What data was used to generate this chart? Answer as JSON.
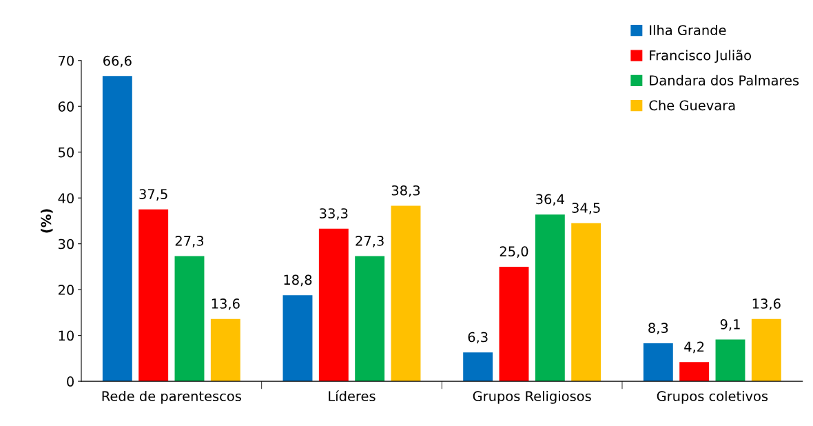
{
  "chart_data": {
    "type": "bar",
    "ylabel": "(%)",
    "categories": [
      "Rede de parentescos",
      "Líderes",
      "Grupos Religiosos",
      "Grupos coletivos"
    ],
    "series": [
      {
        "name": "Ilha Grande",
        "color": "#0070c0",
        "values": [
          66.6,
          18.8,
          6.3,
          8.3
        ],
        "value_labels": [
          "66,6",
          "18,8",
          "6,3",
          "8,3"
        ]
      },
      {
        "name": "Francisco Julião",
        "color": "#ff0000",
        "values": [
          37.5,
          33.3,
          25.0,
          4.2
        ],
        "value_labels": [
          "37,5",
          "33,3",
          "25,0",
          "4,2"
        ]
      },
      {
        "name": "Dandara dos Palmares",
        "color": "#00b050",
        "values": [
          27.3,
          27.3,
          36.4,
          9.1
        ],
        "value_labels": [
          "27,3",
          "27,3",
          "36,4",
          "9,1"
        ]
      },
      {
        "name": "Che Guevara",
        "color": "#ffc000",
        "values": [
          13.6,
          38.3,
          34.5,
          13.6
        ],
        "value_labels": [
          "13,6",
          "38,3",
          "34,5",
          "13,6"
        ]
      }
    ],
    "ylim": [
      0,
      70
    ],
    "yticks": [
      0,
      10,
      20,
      30,
      40,
      50,
      60,
      70
    ],
    "grid": false,
    "legend": "top right"
  }
}
